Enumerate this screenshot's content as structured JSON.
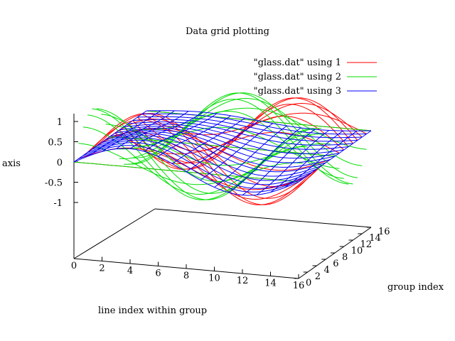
{
  "chart_data": {
    "type": "surface3d",
    "title": "Data grid plotting",
    "xlabel": "line index within group",
    "ylabel": "group index",
    "zlabel": "axis",
    "x_ticks": [
      0,
      2,
      4,
      6,
      8,
      10,
      12,
      14,
      16
    ],
    "y_ticks": [
      0,
      2,
      4,
      6,
      8,
      10,
      12,
      14,
      16
    ],
    "z_ticks": [
      -1,
      -0.5,
      0,
      0.5,
      1
    ],
    "z_tick_labels": [
      "-1",
      "-0.5",
      "0",
      "0.5",
      "1"
    ],
    "xlim": [
      0,
      16
    ],
    "ylim": [
      0,
      16
    ],
    "zlim": [
      -1,
      1
    ],
    "legend_position": "top-right",
    "series": [
      {
        "name": "\"glass.dat\" using 1",
        "color": "#ff0000",
        "style": "lines",
        "amplitude": 1.0,
        "phase_x": 0.0
      },
      {
        "name": "\"glass.dat\" using 2",
        "color": "#00dd00",
        "style": "lines",
        "amplitude": 1.0,
        "phase_x": 1.5708
      },
      {
        "name": "\"glass.dat\" using 3",
        "color": "#0000ff",
        "style": "grid",
        "amplitude": 1.0,
        "phase_x": 0.0
      }
    ]
  }
}
